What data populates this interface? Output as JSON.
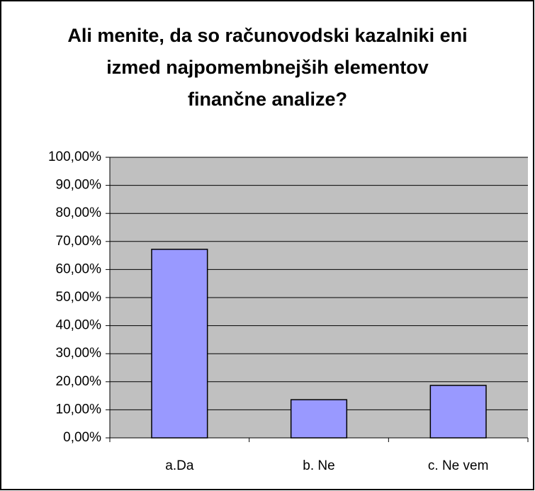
{
  "chart_data": {
    "type": "bar",
    "title": "Ali menite, da so računovodski kazalniki eni izmed najpomembnejših elementov finančne analize?",
    "categories": [
      "a.Da",
      "b. Ne",
      "c. Ne vem"
    ],
    "values": [
      67.2,
      13.6,
      18.7
    ],
    "color": "#9999ff",
    "ylim": [
      0,
      100
    ],
    "yticks": [
      {
        "value": 0,
        "label": "0,00%"
      },
      {
        "value": 10,
        "label": "10,00%"
      },
      {
        "value": 20,
        "label": "20,00%"
      },
      {
        "value": 30,
        "label": "30,00%"
      },
      {
        "value": 40,
        "label": "40,00%"
      },
      {
        "value": 50,
        "label": "50,00%"
      },
      {
        "value": 60,
        "label": "60,00%"
      },
      {
        "value": 70,
        "label": "70,00%"
      },
      {
        "value": 80,
        "label": "80,00%"
      },
      {
        "value": 90,
        "label": "90,00%"
      },
      {
        "value": 100,
        "label": "100,00%"
      }
    ],
    "grid": true,
    "plot_background": "#c0c0c0"
  }
}
